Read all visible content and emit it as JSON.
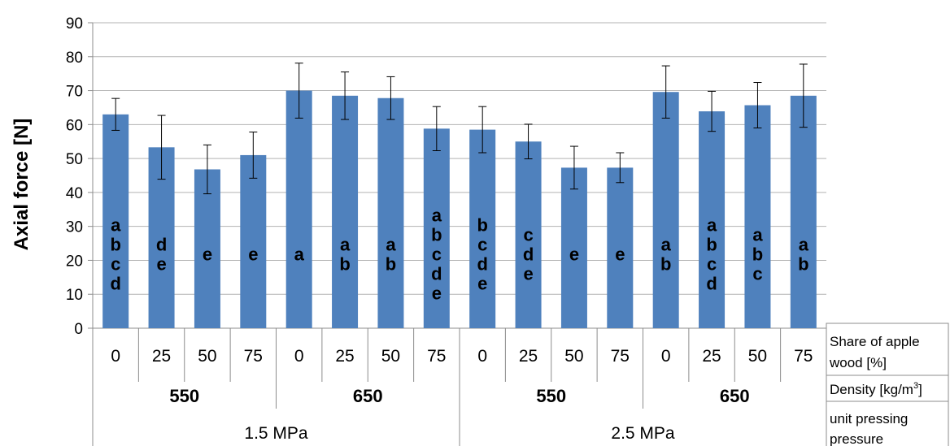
{
  "chart_data": {
    "type": "bar",
    "ylabel": "Axial force [N]",
    "ylim": [
      0,
      90
    ],
    "yticks": [
      0,
      10,
      20,
      30,
      40,
      50,
      60,
      70,
      80,
      90
    ],
    "grid": true,
    "bar_color": "#4f81bd",
    "categories": [
      "0",
      "25",
      "50",
      "75",
      "0",
      "25",
      "50",
      "75",
      "0",
      "25",
      "50",
      "75",
      "0",
      "25",
      "50",
      "75"
    ],
    "values": [
      63,
      53.3,
      46.8,
      51,
      70,
      68.5,
      67.8,
      58.8,
      58.5,
      55,
      47.3,
      47.3,
      69.6,
      63.9,
      65.7,
      68.5
    ],
    "errors": [
      4.7,
      9.4,
      7.2,
      6.8,
      8.1,
      7.0,
      6.3,
      6.5,
      6.8,
      5.1,
      6.3,
      4.4,
      7.7,
      5.9,
      6.7,
      9.3
    ],
    "significance": [
      "abcd",
      "de",
      "e",
      "e",
      "a",
      "ab",
      "ab",
      "abcde",
      "bcde",
      "cde",
      "e",
      "e",
      "ab",
      "abcd",
      "abc",
      "ab"
    ],
    "density_groups": [
      "550",
      "650",
      "550",
      "650"
    ],
    "pressure_groups": [
      "1.5 MPa",
      "2.5 MPa"
    ],
    "legend_rows": [
      [
        "Share of apple",
        "wood [%]"
      ],
      [
        "Density [kg/m",
        "3",
        "]"
      ],
      [
        "unit pressing",
        "pressure"
      ]
    ]
  }
}
